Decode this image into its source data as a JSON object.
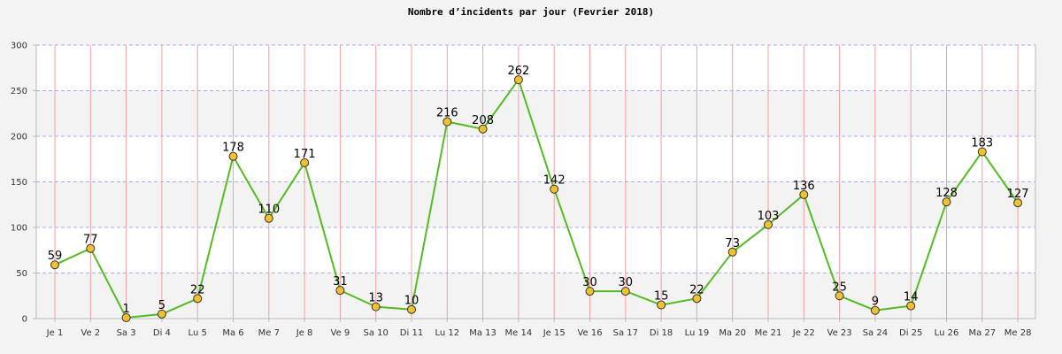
{
  "chart_data": {
    "type": "line",
    "title": "Nombre d’incidents par jour (Fevrier 2018)",
    "xlabel": "",
    "ylabel": "",
    "ylim": [
      0,
      300
    ],
    "yticks": [
      0,
      50,
      100,
      150,
      200,
      250,
      300
    ],
    "grid": true,
    "categories": [
      "Je 1",
      "Ve 2",
      "Sa 3",
      "Di 4",
      "Lu 5",
      "Ma 6",
      "Me 7",
      "Je 8",
      "Ve 9",
      "Sa 10",
      "Di 11",
      "Lu 12",
      "Ma 13",
      "Me 14",
      "Je 15",
      "Ve 16",
      "Sa 17",
      "Di 18",
      "Lu 19",
      "Ma 20",
      "Me 21",
      "Je 22",
      "Ve 23",
      "Sa 24",
      "Di 25",
      "Lu 26",
      "Ma 27",
      "Me 28"
    ],
    "series": [
      {
        "values": [
          59,
          77,
          1,
          5,
          22,
          178,
          110,
          171,
          31,
          13,
          10,
          216,
          208,
          262,
          142,
          30,
          30,
          15,
          22,
          73,
          103,
          136,
          25,
          9,
          14,
          128,
          183,
          127
        ],
        "color": "#55bb22",
        "marker_color": "#f2c12e"
      }
    ],
    "colors": {
      "band_light": "#ffffff",
      "band_dark": "#f3f3f3",
      "vgrid": "#f2a0a0",
      "hgrid": "#aaaaee",
      "axis": "#bbbbbb"
    }
  }
}
